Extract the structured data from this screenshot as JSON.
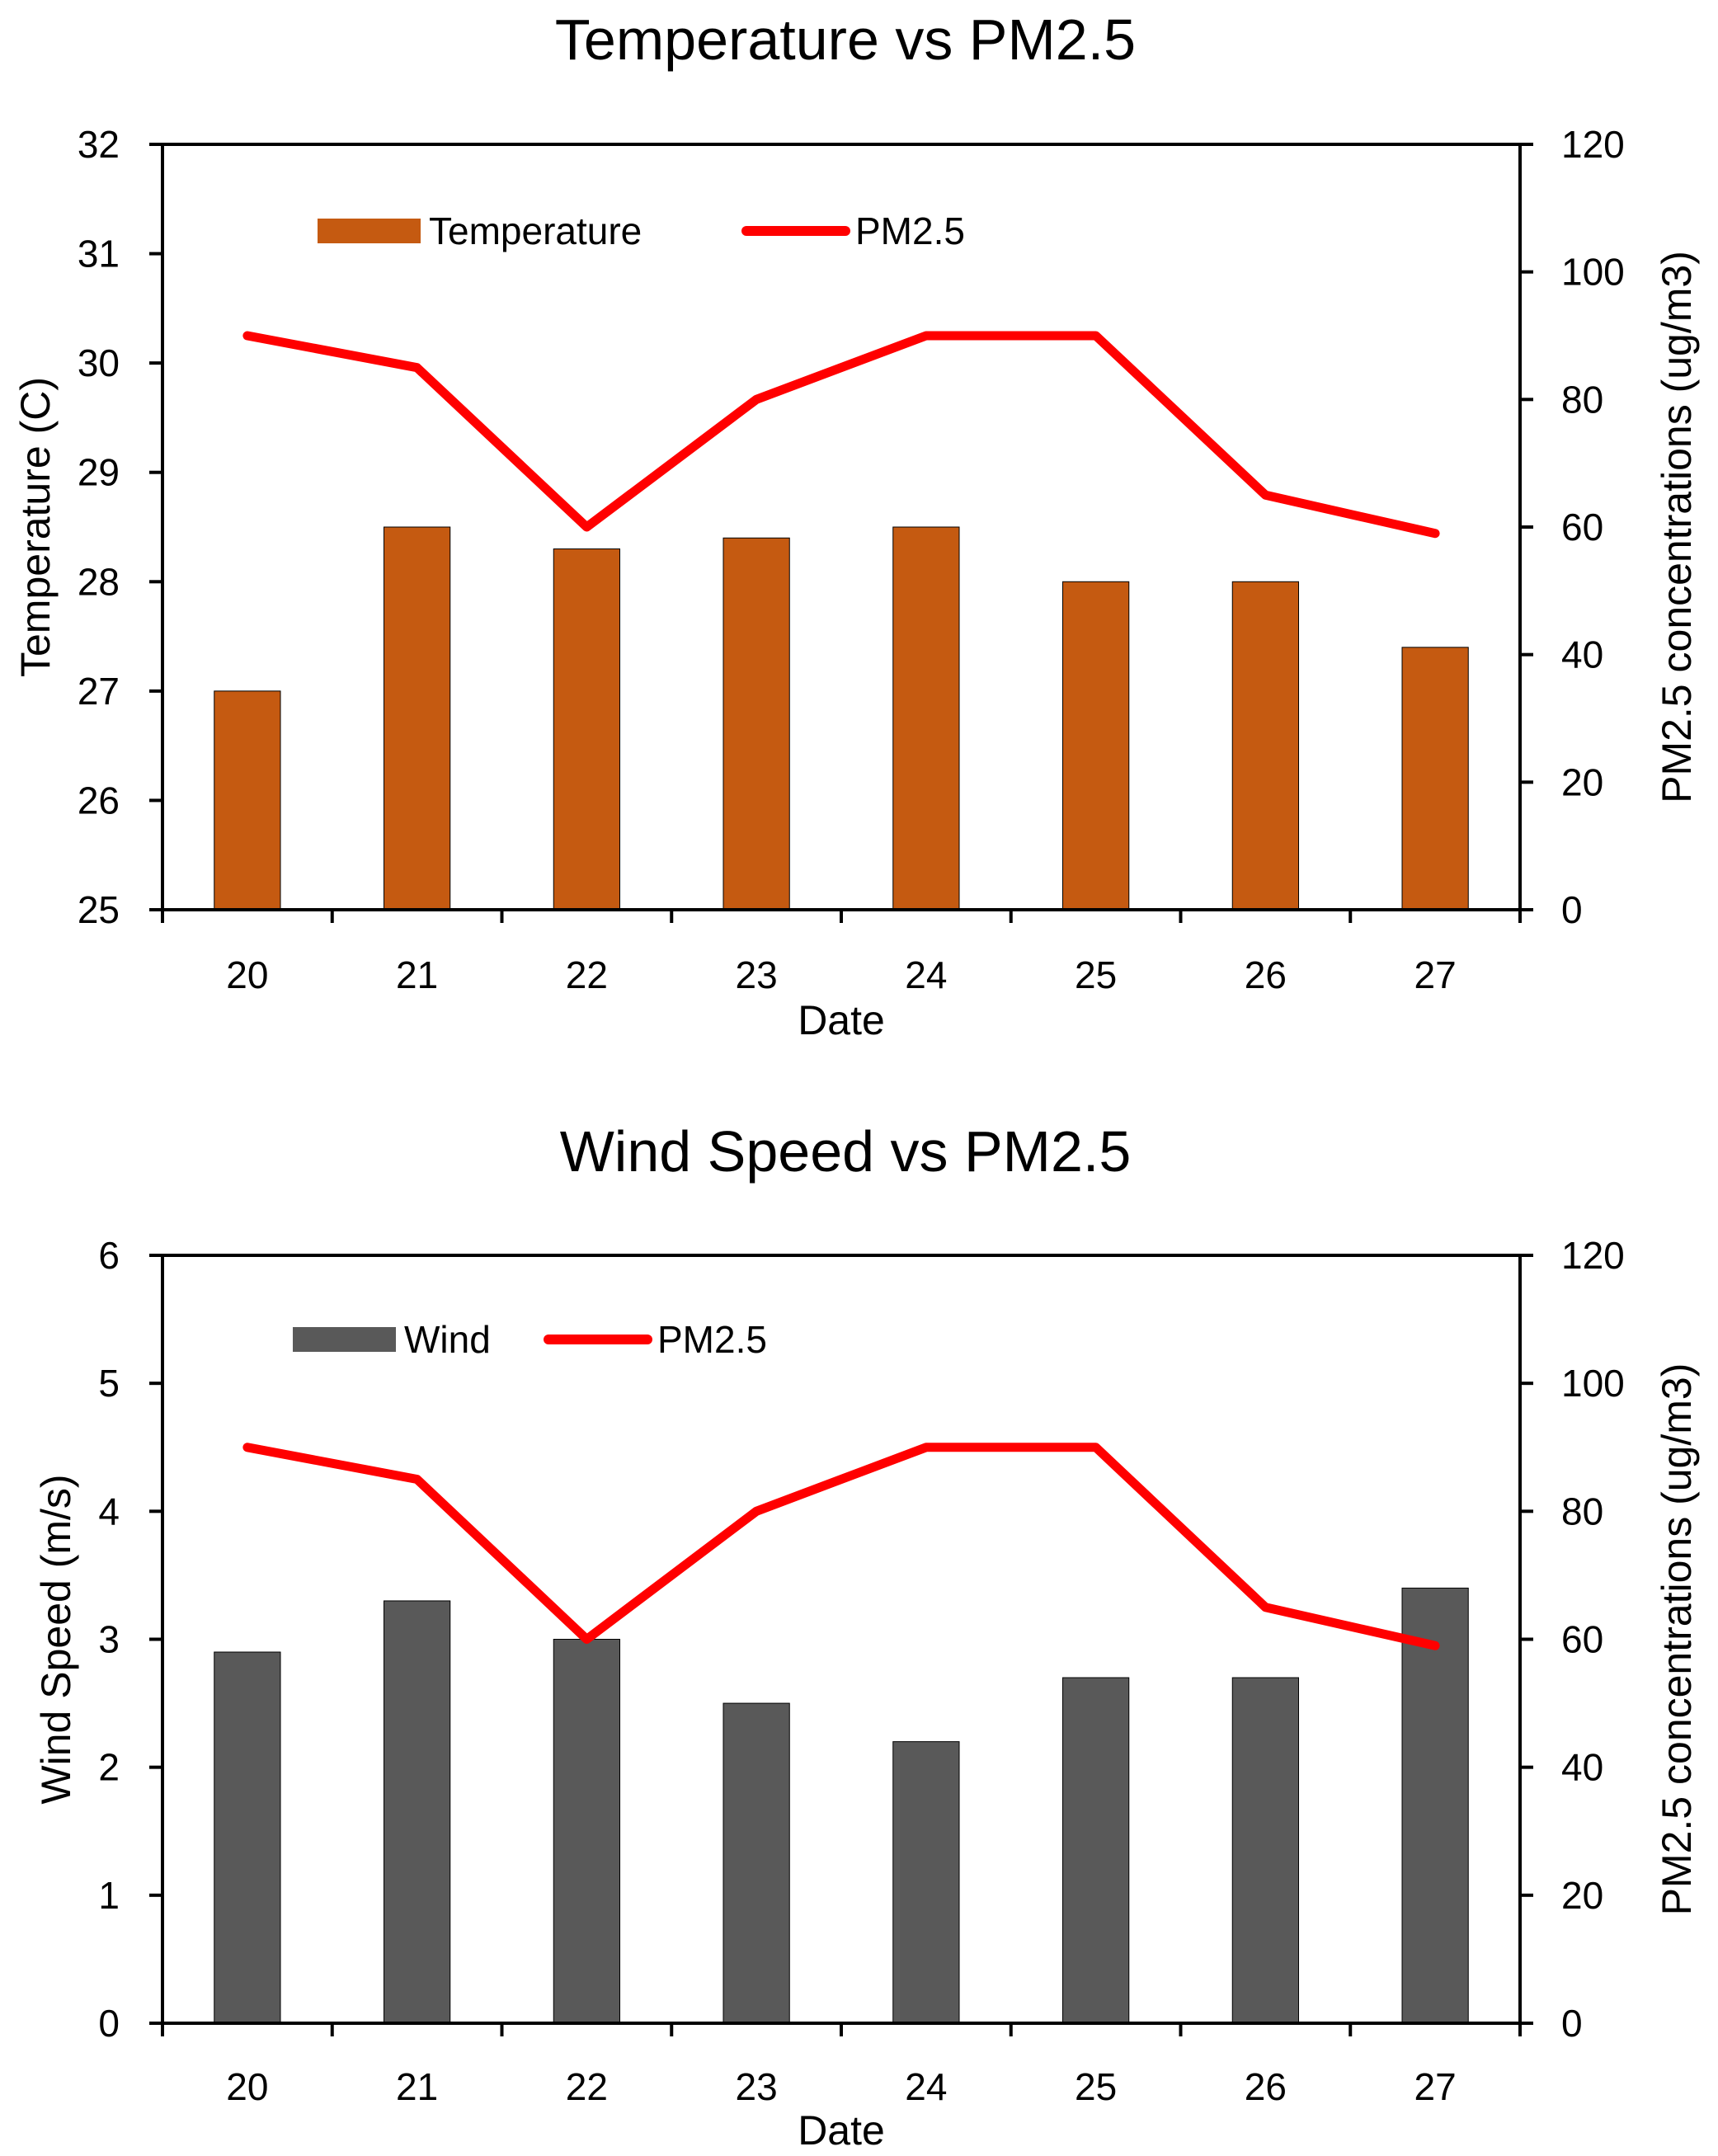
{
  "chart_data": [
    {
      "id": "temp",
      "type": "bar+line",
      "title": "Temperature vs PM2.5",
      "xlabel": "Date",
      "ylabel": "Temperature (C)",
      "y2label": "PM2.5 concentrations (ug/m3)",
      "categories": [
        "20",
        "21",
        "22",
        "23",
        "24",
        "25",
        "26",
        "27"
      ],
      "ylim": [
        25,
        32
      ],
      "yticks": [
        "25",
        "26",
        "27",
        "28",
        "29",
        "30",
        "31",
        "32"
      ],
      "y2lim": [
        0,
        120
      ],
      "y2ticks": [
        "0",
        "20",
        "40",
        "60",
        "80",
        "100",
        "120"
      ],
      "grid": false,
      "legend_position": "top-left, inside",
      "bar_series": {
        "name": "Temperature",
        "color": "#C55A11",
        "values": [
          27.0,
          28.5,
          28.3,
          28.4,
          28.5,
          28.0,
          28.0,
          27.4
        ]
      },
      "line_series": {
        "name": "PM2.5",
        "color": "#FF0000",
        "values": [
          90,
          85,
          60,
          80,
          90,
          90,
          65,
          59
        ]
      }
    },
    {
      "id": "wind",
      "type": "bar+line",
      "title": "Wind Speed vs PM2.5",
      "xlabel": "Date",
      "ylabel": "Wind Speed (m/s)",
      "y2label": "PM2.5 concentrations (ug/m3)",
      "categories": [
        "20",
        "21",
        "22",
        "23",
        "24",
        "25",
        "26",
        "27"
      ],
      "ylim": [
        0,
        6
      ],
      "yticks": [
        "0",
        "1",
        "2",
        "3",
        "4",
        "5",
        "6"
      ],
      "y2lim": [
        0,
        120
      ],
      "y2ticks": [
        "0",
        "20",
        "40",
        "60",
        "80",
        "100",
        "120"
      ],
      "grid": false,
      "legend_position": "top-left, inside",
      "bar_series": {
        "name": "Wind",
        "color": "#595959",
        "values": [
          2.9,
          3.3,
          3.0,
          2.5,
          2.2,
          2.7,
          2.7,
          3.4
        ]
      },
      "line_series": {
        "name": "PM2.5",
        "color": "#FF0000",
        "values": [
          90,
          85,
          60,
          80,
          90,
          90,
          65,
          59
        ]
      }
    }
  ]
}
